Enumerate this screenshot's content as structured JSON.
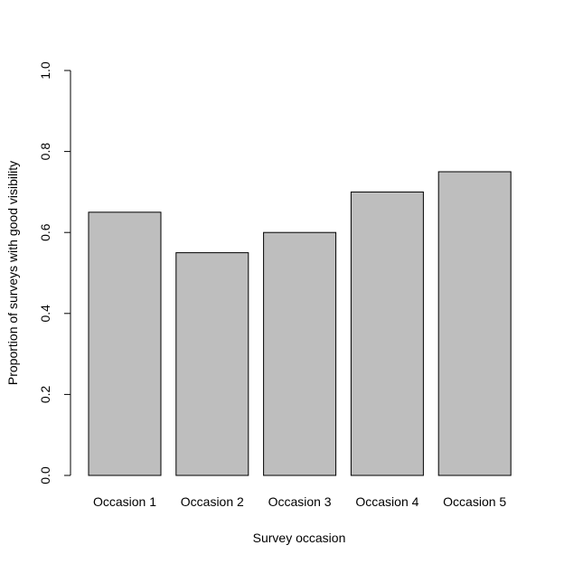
{
  "chart_data": {
    "type": "bar",
    "categories": [
      "Occasion 1",
      "Occasion 2",
      "Occasion 3",
      "Occasion 4",
      "Occasion 5"
    ],
    "values": [
      0.65,
      0.55,
      0.6,
      0.7,
      0.75
    ],
    "xlabel": "Survey occasion",
    "ylabel": "Proportion of surveys with good visibility",
    "ylim": [
      0,
      1
    ],
    "yticks": [
      0.0,
      0.2,
      0.4,
      0.6,
      0.8,
      1.0
    ],
    "ytick_labels": [
      "0.0",
      "0.2",
      "0.4",
      "0.6",
      "0.8",
      "1.0"
    ],
    "bar_color": "#bebebe",
    "bar_border_color": "#000000",
    "grid": false,
    "legend": "none"
  }
}
